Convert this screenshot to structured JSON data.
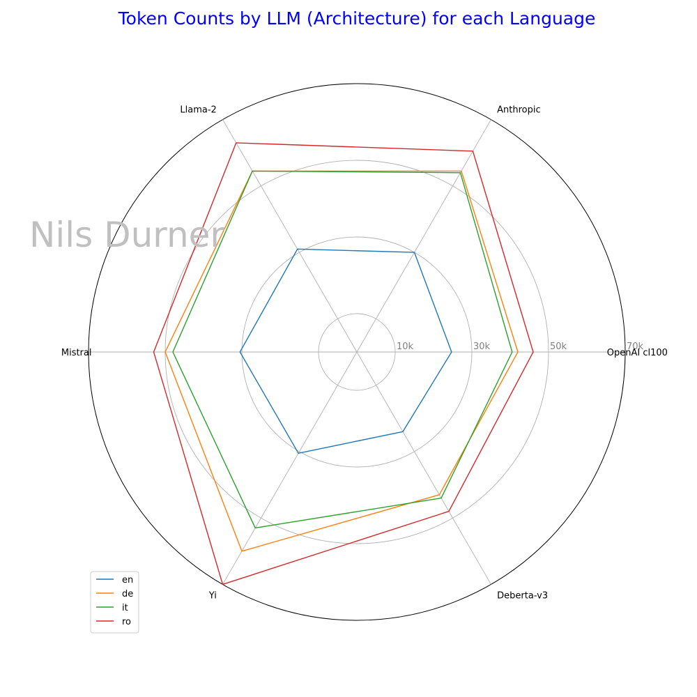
{
  "chart_data": {
    "type": "radar",
    "title": "Token Counts by LLM (Architecture) for each Language",
    "categories": [
      "OpenAI cl100",
      "Anthropic",
      "Llama-2",
      "Mistral",
      "Yi",
      "Deberta-v3"
    ],
    "radial_ticks": [
      10000,
      30000,
      50000,
      70000
    ],
    "radial_tick_labels": [
      "10k",
      "30k",
      "50k",
      "70k"
    ],
    "rmax": 70000,
    "legend_position": "lower-left",
    "series": [
      {
        "name": "en",
        "color": "#1f77b4",
        "values": [
          24700,
          30000,
          31000,
          30500,
          30500,
          24000
        ]
      },
      {
        "name": "de",
        "color": "#ff7f0e",
        "values": [
          42000,
          54500,
          54500,
          50000,
          60000,
          43000
        ]
      },
      {
        "name": "it",
        "color": "#2ca02c",
        "values": [
          40500,
          54000,
          54500,
          48000,
          53000,
          44000
        ]
      },
      {
        "name": "ro",
        "color": "#d62728",
        "values": [
          46000,
          60500,
          63000,
          53000,
          70000,
          48000
        ]
      }
    ]
  },
  "watermark": "Nils Durner"
}
